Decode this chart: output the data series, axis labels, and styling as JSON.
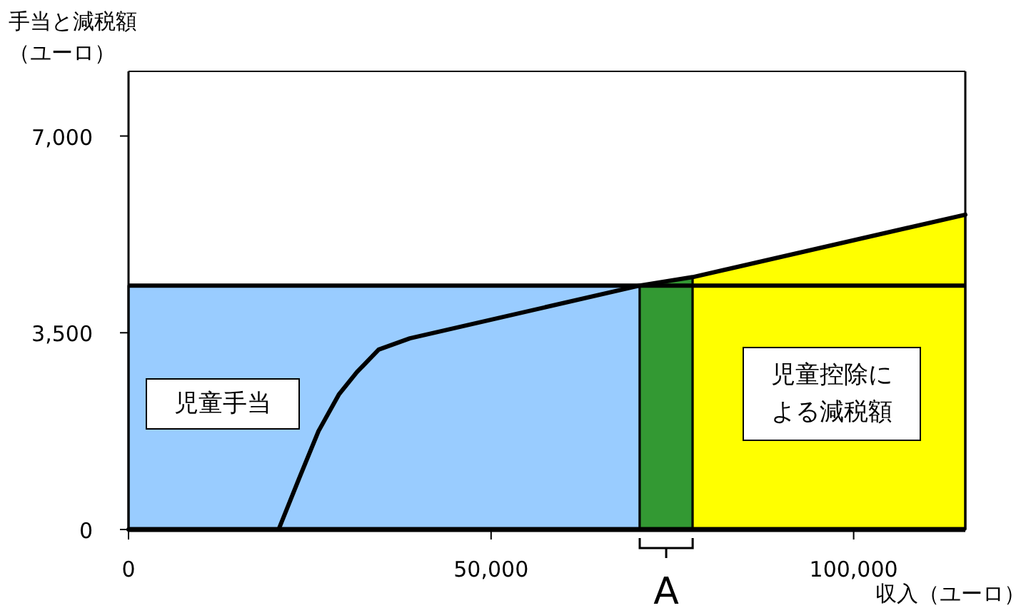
{
  "chart_data": {
    "type": "area",
    "ylabel": "手当と減税額（ユーロ）",
    "xlabel": "収入（ユーロ）",
    "xlim": [
      0,
      115400
    ],
    "ylim": [
      0,
      8150
    ],
    "xticks": [
      {
        "value": 0,
        "label": "0"
      },
      {
        "value": 50000,
        "label": "50,000"
      },
      {
        "value": 100000,
        "label": "100,000"
      }
    ],
    "yticks": [
      {
        "value": 0,
        "label": "0"
      },
      {
        "value": 3500,
        "label": "3,500"
      },
      {
        "value": 7000,
        "label": "7,000"
      }
    ],
    "grid": false,
    "series": [
      {
        "color": "#99ccff",
        "x": [
          0,
          70500
        ],
        "values": [
          4340,
          4340
        ]
      },
      {
        "color": "#339933",
        "x": [
          70500,
          77800
        ],
        "values": [
          4340,
          4490
        ]
      },
      {
        "color": "#ffff00",
        "x": [
          77800,
          115400
        ],
        "values": [
          4490,
          5600
        ]
      },
      {
        "type": "line",
        "color": "#000000",
        "x": [
          0,
          20700,
          23500,
          26200,
          29000,
          31500,
          34500,
          38800,
          70500,
          77800,
          115400
        ],
        "values": [
          0,
          0,
          900,
          1750,
          2400,
          2800,
          3200,
          3400,
          4340,
          4490,
          5600
        ]
      }
    ],
    "ref_lines": [
      {
        "axis": "y",
        "value": 4340,
        "color": "#000000"
      }
    ],
    "annotations": [
      "児童手当",
      "児童控除による減税額",
      "A"
    ]
  }
}
